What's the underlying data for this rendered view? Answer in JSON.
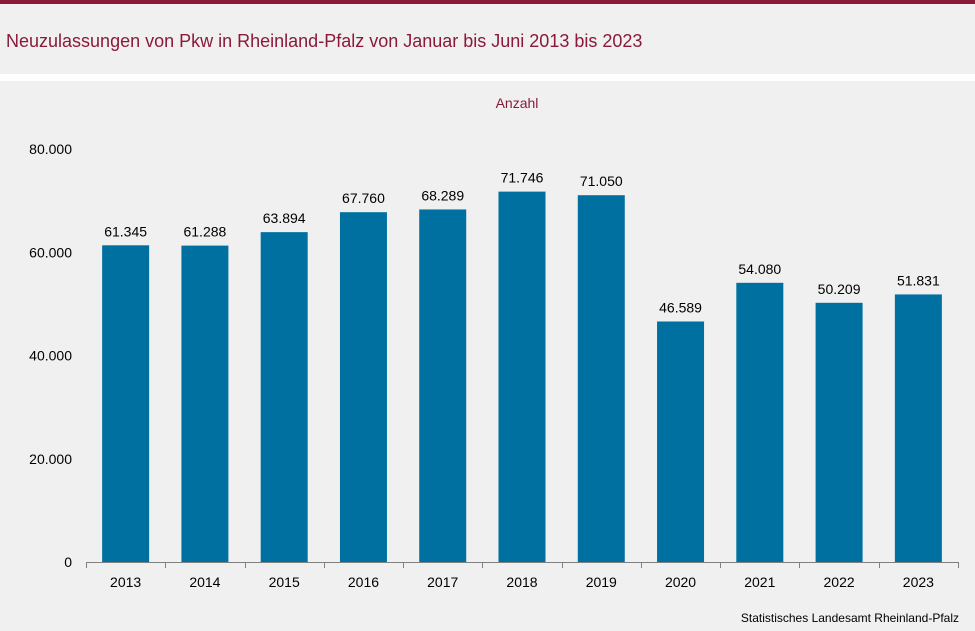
{
  "title": "Neuzulassungen von Pkw in Rheinland-Pfalz von Januar bis Juni 2013 bis 2023",
  "source": "Statistisches Landesamt  Rheinland-Pfalz",
  "colors": {
    "accent": "#8b1a3a",
    "bar": "#0070a0",
    "background": "#f0f0f0"
  },
  "chart_data": {
    "type": "bar",
    "unit_label": "Anzahl",
    "categories": [
      "2013",
      "2014",
      "2015",
      "2016",
      "2017",
      "2018",
      "2019",
      "2020",
      "2021",
      "2022",
      "2023"
    ],
    "values": [
      61345,
      61288,
      63894,
      67760,
      68289,
      71746,
      71050,
      46589,
      54080,
      50209,
      51831
    ],
    "value_labels": [
      "61.345",
      "61.288",
      "63.894",
      "67.760",
      "68.289",
      "71.746",
      "71.050",
      "46.589",
      "54.080",
      "50.209",
      "51.831"
    ],
    "ylim": [
      0,
      80000
    ],
    "yticks": [
      0,
      20000,
      40000,
      60000,
      80000
    ],
    "ytick_labels": [
      "0",
      "20.000",
      "40.000",
      "60.000",
      "80.000"
    ],
    "grid": false,
    "legend": "none"
  }
}
